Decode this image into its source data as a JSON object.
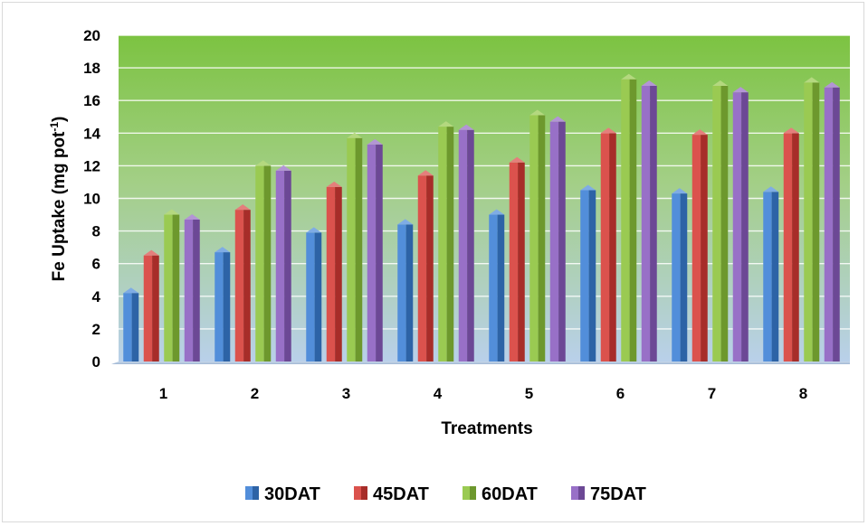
{
  "chart_data": {
    "type": "bar",
    "title": "",
    "xlabel": "Treatments",
    "ylabel_main": "Fe Uptake (mg pot",
    "ylabel_sup": "-1",
    "ylabel_end": ")",
    "categories": [
      "1",
      "2",
      "3",
      "4",
      "5",
      "6",
      "7",
      "8"
    ],
    "series": [
      {
        "name": "30DAT",
        "color": "#3a7fd5",
        "values": [
          4.2,
          6.7,
          7.9,
          8.4,
          9.0,
          10.5,
          10.3,
          10.4
        ]
      },
      {
        "name": "45DAT",
        "color": "#d63a35",
        "values": [
          6.5,
          9.3,
          10.7,
          11.4,
          12.2,
          14.0,
          13.9,
          14.0
        ]
      },
      {
        "name": "60DAT",
        "color": "#8cc33a",
        "values": [
          9.0,
          12.0,
          13.7,
          14.4,
          15.1,
          17.3,
          16.9,
          17.1
        ]
      },
      {
        "name": "75DAT",
        "color": "#8a5cbf",
        "values": [
          8.7,
          11.7,
          13.3,
          14.2,
          14.7,
          16.9,
          16.5,
          16.8
        ]
      }
    ],
    "yticks": [
      "0",
      "2",
      "4",
      "6",
      "8",
      "10",
      "12",
      "14",
      "16",
      "18",
      "20"
    ],
    "ylim": [
      0,
      20
    ],
    "grid": true,
    "legend": "bottom",
    "plot_background": "gradient light-blue to green"
  }
}
